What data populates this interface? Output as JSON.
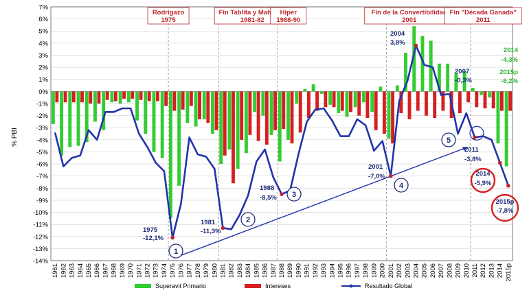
{
  "chart_data": {
    "type": "bar",
    "title": "",
    "ylabel": "% PBI",
    "ylim": [
      -14,
      7
    ],
    "yticks": [
      "7%",
      "6%",
      "5%",
      "4%",
      "3%",
      "2%",
      "1%",
      "0%",
      "-1%",
      "-2%",
      "-3%",
      "-4%",
      "-5%",
      "-6%",
      "-7%",
      "-8%",
      "-9%",
      "-10%",
      "-11%",
      "-12%",
      "-13%",
      "-14%"
    ],
    "categories": [
      "1961",
      "1962",
      "1963",
      "1964",
      "1965",
      "1966",
      "1967",
      "1968",
      "1969",
      "1970",
      "1971",
      "1972",
      "1973",
      "1974",
      "1975",
      "1976",
      "1977",
      "1978",
      "1979",
      "1980",
      "1981",
      "1982",
      "1983",
      "1984",
      "1985",
      "1986",
      "1987",
      "1988",
      "1989",
      "1990",
      "1991",
      "1992",
      "1993",
      "1994",
      "1995",
      "1996",
      "1997",
      "1998",
      "1999",
      "2000",
      "2001",
      "2002",
      "2003",
      "2004",
      "2005",
      "2006",
      "2007",
      "2008",
      "2009",
      "2010",
      "2011",
      "2012",
      "2013",
      "2014",
      "2015p"
    ],
    "series": [
      {
        "name": "Superavit Primario",
        "color": "#33cc33",
        "type": "bar",
        "values": [
          -2.7,
          -5.3,
          -4.6,
          -4.5,
          -4.2,
          -2.5,
          -3.2,
          -0.9,
          -1.0,
          -0.9,
          -2.4,
          -3.5,
          -5.0,
          -5.5,
          -10.5,
          -7.8,
          -2.6,
          -2.9,
          -2.3,
          -3.5,
          -6.0,
          -4.8,
          -6.4,
          -5.1,
          -1.7,
          -2.0,
          -3.6,
          -5.8,
          -4.0,
          -1.0,
          0.2,
          0.6,
          -0.2,
          -1.1,
          -1.8,
          -2.1,
          -1.3,
          -0.9,
          -1.7,
          0.4,
          -3.9,
          0.5,
          3.2,
          5.4,
          4.6,
          4.2,
          2.3,
          2.3,
          1.5,
          1.7,
          0.3,
          -0.3,
          -0.5,
          -4.3,
          -6.2
        ]
      },
      {
        "name": "Intereses",
        "color": "#d42020",
        "type": "bar",
        "values": [
          -0.9,
          -0.9,
          -0.9,
          -0.9,
          -1.0,
          -1.0,
          -0.7,
          -0.8,
          -0.6,
          -0.6,
          -0.7,
          -0.8,
          -0.8,
          -1.2,
          -1.6,
          -1.5,
          -1.2,
          -2.3,
          -2.6,
          -3.2,
          -5.3,
          -7.6,
          -4.0,
          -3.6,
          -4.1,
          -4.4,
          -3.2,
          -3.1,
          -4.3,
          -3.4,
          -2.2,
          -1.6,
          -1.3,
          -1.3,
          -1.6,
          -1.7,
          -2.0,
          -2.2,
          -3.2,
          -3.5,
          -4.3,
          -1.8,
          -2.3,
          -1.6,
          -2.0,
          -2.2,
          -1.6,
          -2.2,
          -1.8,
          -0.9,
          -1.3,
          -1.4,
          -1.4,
          -1.6,
          -1.6
        ]
      },
      {
        "name": "Resultado Global",
        "color": "#2233aa",
        "type": "line",
        "values": [
          -3.4,
          -6.2,
          -5.5,
          -5.3,
          -3.2,
          -4.0,
          -1.7,
          -1.7,
          -1.4,
          -1.4,
          -3.5,
          -4.6,
          -5.9,
          -6.6,
          -12.1,
          -9.3,
          -3.8,
          -5.2,
          -5.4,
          -6.4,
          -11.3,
          -11.4,
          -10.2,
          -8.6,
          -5.8,
          -4.8,
          -7.1,
          -8.5,
          -8.2,
          -5.2,
          -2.5,
          -1.5,
          -1.4,
          -2.4,
          -3.7,
          -3.7,
          -2.3,
          -2.8,
          -4.9,
          -4.1,
          -7.0,
          -0.8,
          0.9,
          3.8,
          2.2,
          2.0,
          -0.3,
          -0.2,
          -3.5,
          -1.8,
          -3.8,
          -3.7,
          -4.0,
          -5.9,
          -7.8
        ]
      }
    ],
    "events": [
      {
        "label": "Rodrigazo",
        "sub": "1975"
      },
      {
        "label": "Fin Tablita y Malvinas",
        "sub": "1981-82"
      },
      {
        "label": "Hiper",
        "sub": "1988-90"
      },
      {
        "label": "Fin de la Convertibilidad",
        "sub": "2001"
      },
      {
        "label": "Fin \"Década Ganada\"",
        "sub": "2011"
      }
    ],
    "annotations": [
      {
        "year": "1975",
        "value": "-12,1%",
        "color": "navy"
      },
      {
        "year": "1981",
        "value": "-11,3%",
        "color": "navy"
      },
      {
        "year": "1988",
        "value": "-8,5%",
        "color": "navy"
      },
      {
        "year": "2001",
        "value": "-7,0%",
        "color": "navy"
      },
      {
        "year": "2004",
        "value": "3,8%",
        "color": "navy"
      },
      {
        "year": "2007",
        "value": "-0,3%",
        "color": "navy"
      },
      {
        "year": "2011",
        "value": "-3,8%",
        "color": "navy"
      },
      {
        "year": "2014",
        "value": "-5,9%",
        "color": "navy"
      },
      {
        "year": "2015p",
        "value": "-7,8%",
        "color": "navy"
      },
      {
        "year": "2014",
        "value": "-4,3%",
        "color": "green"
      },
      {
        "year": "2015p",
        "value": "-6,2%",
        "color": "green"
      }
    ],
    "markers": [
      "1",
      "2",
      "3",
      "4",
      "5"
    ],
    "legend": [
      "Superavit Primario",
      "Intereses",
      "Resultado Global"
    ],
    "legend_position": "bottom",
    "grid": true
  }
}
